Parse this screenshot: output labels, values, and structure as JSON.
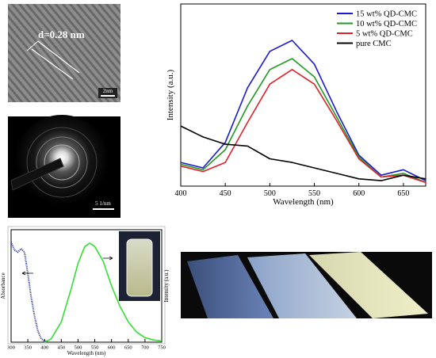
{
  "images": {
    "hrtem": {
      "annotation": "d=0.28 nm",
      "scale_bar": "2nm"
    },
    "saed": {
      "scale_bar": "5 1/nm"
    }
  },
  "chart_data": [
    {
      "type": "line",
      "xlabel": "Wavelength (nm)",
      "ylabel": "Intensity (a.u.)",
      "x": [
        400,
        425,
        450,
        475,
        500,
        525,
        550,
        575,
        600,
        625,
        650,
        675
      ],
      "xlim": [
        400,
        675
      ],
      "xticks": [
        400,
        450,
        500,
        550,
        600,
        650
      ],
      "ylim": [
        0,
        100
      ],
      "legend": "upper right",
      "series": [
        {
          "name": "15 wt% QD-CMC",
          "color": "#1a1ad0",
          "values": [
            13,
            10,
            24,
            54,
            74,
            80,
            67,
            41,
            17,
            6,
            9,
            3
          ]
        },
        {
          "name": "10 wt% QD-CMC",
          "color": "#1f9a1f",
          "values": [
            12,
            9,
            20,
            44,
            64,
            70,
            60,
            38,
            16,
            5,
            7,
            2
          ]
        },
        {
          "name": "5 wt% QD-CMC",
          "color": "#e0202a",
          "values": [
            11,
            8,
            13,
            35,
            56,
            64,
            56,
            36,
            15,
            5,
            6,
            2
          ]
        },
        {
          "name": "pure CMC",
          "color": "#000000",
          "values": [
            33,
            27,
            23,
            22,
            15,
            13,
            10,
            7,
            4,
            3,
            6,
            4
          ]
        }
      ]
    },
    {
      "type": "line",
      "xlabel": "Wavelength (nm)",
      "ylabel": "Absorbance",
      "y2label": "Intensity (a.u.)",
      "xlim": [
        300,
        750
      ],
      "xticks": [
        300,
        350,
        400,
        450,
        500,
        550,
        600,
        650,
        700,
        750
      ],
      "ylim": [
        0,
        100
      ],
      "y2lim": [
        0,
        100
      ],
      "series": [
        {
          "color": "#1c2a9a",
          "line_style": "dotted",
          "x": [
            300,
            310,
            320,
            330,
            340,
            350,
            360,
            370,
            380,
            390,
            400,
            410
          ],
          "values": [
            89,
            82,
            80,
            83,
            80,
            61,
            40,
            23,
            10,
            3,
            1,
            0
          ]
        },
        {
          "color": "#33e033",
          "axis": "y2",
          "x": [
            400,
            420,
            450,
            480,
            500,
            520,
            535,
            550,
            575,
            600,
            625,
            650,
            675,
            700,
            725,
            750
          ],
          "values": [
            0,
            3,
            18,
            48,
            70,
            85,
            88,
            85,
            72,
            50,
            32,
            18,
            9,
            4,
            2,
            1
          ]
        }
      ]
    }
  ]
}
